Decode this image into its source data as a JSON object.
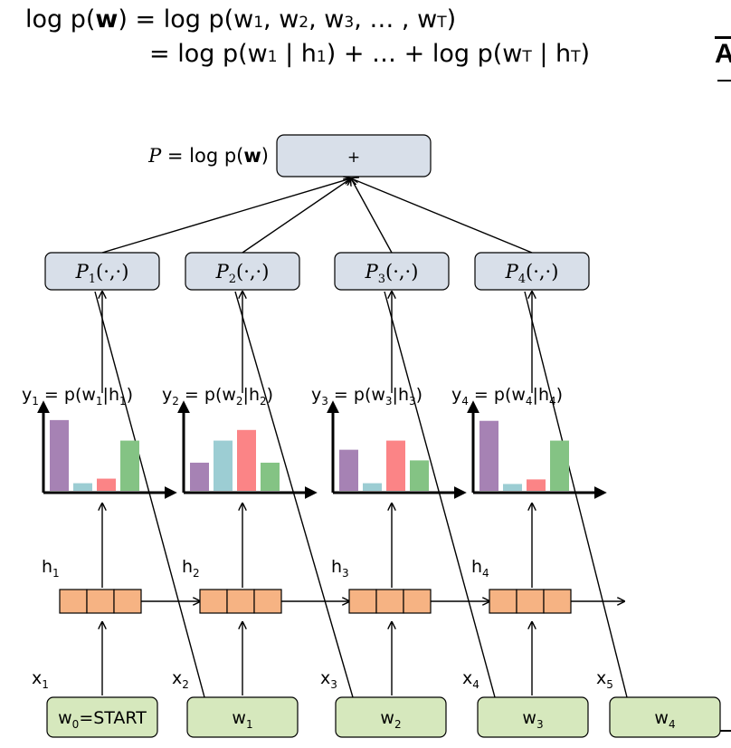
{
  "equation": {
    "line1_lhs": "log p(",
    "line1_bold": "w",
    "line1_mid": ") = log p(w",
    "line1_s1": "1",
    "line1_c1": ", w",
    "line1_s2": "2",
    "line1_c2": ", w",
    "line1_s3": "3",
    "line1_c3": ", … , w",
    "line1_sT": "T",
    "line1_end": ")",
    "line2_a": "= log p(w",
    "line2_s1": "1",
    "line2_b": " | h",
    "line2_s2": "1",
    "line2_c": ") + … + log p(w",
    "line2_sT": "T",
    "line2_d": " | h",
    "line2_sT2": "T",
    "line2_e": ")"
  },
  "edge_fragment": "A",
  "top_node": {
    "label": "+",
    "caption_prefix": "P",
    "caption_mid": " = log p(",
    "caption_bold": "w",
    "caption_end": ")"
  },
  "prob_nodes": [
    {
      "name": "P",
      "sub": "1",
      "args": "(·,·)"
    },
    {
      "name": "P",
      "sub": "2",
      "args": "(·,·)"
    },
    {
      "name": "P",
      "sub": "3",
      "args": "(·,·)"
    },
    {
      "name": "P",
      "sub": "4",
      "args": "(·,·)"
    }
  ],
  "y_labels": [
    {
      "y": "y",
      "ys": "1",
      "eq": " = p(w",
      "ws": "1",
      "bar": "|h",
      "hs": "1",
      "close": ")"
    },
    {
      "y": "y",
      "ys": "2",
      "eq": " = p(w",
      "ws": "2",
      "bar": "|h",
      "hs": "2",
      "close": ")"
    },
    {
      "y": "y",
      "ys": "3",
      "eq": " = p(w",
      "ws": "3",
      "bar": "|h",
      "hs": "3",
      "close": ")"
    },
    {
      "y": "y",
      "ys": "4",
      "eq": " = p(w",
      "ws": "4",
      "bar": "|h",
      "hs": "4",
      "close": ")"
    }
  ],
  "distributions": [
    {
      "values": [
        0.93,
        0.1,
        0.16,
        0.66
      ]
    },
    {
      "values": [
        0.37,
        0.66,
        0.8,
        0.37
      ]
    },
    {
      "values": [
        0.54,
        0.1,
        0.66,
        0.4
      ]
    },
    {
      "values": [
        0.92,
        0.09,
        0.15,
        0.66
      ]
    }
  ],
  "bar_colors": [
    "#a682b4",
    "#9ccdd3",
    "#fb8486",
    "#84c384"
  ],
  "hidden_labels": [
    {
      "h": "h",
      "s": "1"
    },
    {
      "h": "h",
      "s": "2"
    },
    {
      "h": "h",
      "s": "3"
    },
    {
      "h": "h",
      "s": "4"
    }
  ],
  "input_labels": [
    {
      "x": "x",
      "s": "1"
    },
    {
      "x": "x",
      "s": "2"
    },
    {
      "x": "x",
      "s": "3"
    },
    {
      "x": "x",
      "s": "4"
    },
    {
      "x": "x",
      "s": "5"
    }
  ],
  "word_nodes": [
    {
      "w": "w",
      "s": "0",
      "rest": "=START"
    },
    {
      "w": "w",
      "s": "1",
      "rest": ""
    },
    {
      "w": "w",
      "s": "2",
      "rest": ""
    },
    {
      "w": "w",
      "s": "3",
      "rest": ""
    },
    {
      "w": "w",
      "s": "4",
      "rest": ""
    }
  ],
  "colors": {
    "node_fill": "#d8dfe9",
    "hidden_fill": "#f6b383",
    "word_fill": "#d6e8bd",
    "stroke": "#000000"
  }
}
